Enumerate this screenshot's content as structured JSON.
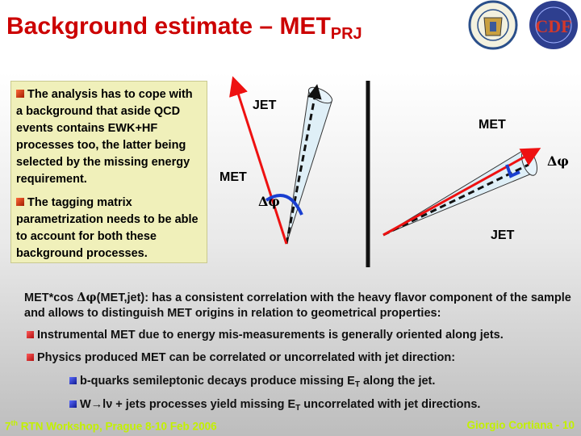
{
  "title": {
    "main": "Background estimate – MET",
    "sub": "PRJ"
  },
  "logos": {
    "seal_text": "UNIVERSITAS STUDII",
    "cdf_text": "CDF"
  },
  "textbox": {
    "para1": "The analysis has to cope with a background that aside QCD events contains EWK+HF processes too, the latter being selected by the missing energy requirement.",
    "para2": "The tagging matrix parametrization needs to be able to account for both these background processes."
  },
  "diagram": {
    "left": {
      "jet": "JET",
      "met": "MET",
      "dphi": "Δφ"
    },
    "right": {
      "met": "MET",
      "dphi": "Δφ",
      "jet": "JET"
    },
    "colors": {
      "met_arrow": "#ee1111",
      "cone_fill": "#dfeff7",
      "dphi_arc": "#1a3fd0",
      "divider": "#111111"
    }
  },
  "main": {
    "intro_a": "MET*cos ",
    "intro_phi": "Δφ",
    "intro_b": "(MET,jet): has a consistent correlation with the heavy flavor component of the sample and allows to distinguish MET origins in relation to geometrical properties:",
    "items": [
      {
        "text": "Instrumental MET due to energy mis-measurements is generally oriented along jets."
      },
      {
        "text": "Physics produced MET can be correlated or uncorrelated with jet direction:"
      }
    ],
    "subitems": [
      {
        "pre": "b-quarks semileptonic decays produce missing E",
        "sub": "T",
        "post": " along the jet."
      },
      {
        "pre": "W→lν + jets processes yield missing E",
        "sub": "T",
        "post": " uncorrelated with jet directions."
      }
    ]
  },
  "footer": {
    "left_num": "7",
    "left_sup": "th",
    "left_rest": " RTN Workshop, Prague 8-10 Feb 2006",
    "right": "Giorgio Cortiana  - 10"
  }
}
